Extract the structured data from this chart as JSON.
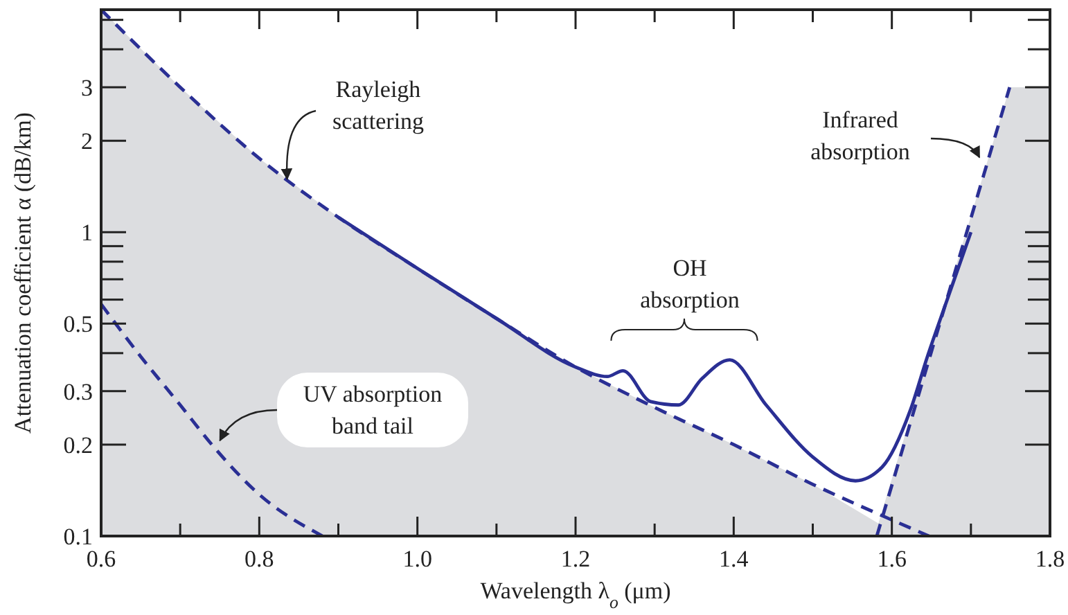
{
  "chart_data": {
    "type": "line",
    "xlabel": "Wavelength λ$_{o}$ (μm)",
    "ylabel": "Attenuation coefficient α (dB/km)",
    "log": "y",
    "xlim": [
      0.6,
      1.8
    ],
    "ylim": [
      0.1,
      5.4
    ],
    "xticks": [
      0.6,
      {
        "value": 0.7,
        "label": null
      },
      {
        "value": 0.8,
        "label": "0.8"
      },
      {
        "value": 0.9,
        "label": null
      },
      {
        "value": 1.0,
        "label": "1.0"
      },
      {
        "value": 1.1,
        "label": null
      },
      {
        "value": 1.2,
        "label": "1.2"
      },
      {
        "value": 1.3,
        "label": null
      },
      {
        "value": 1.4,
        "label": "1.4"
      },
      {
        "value": 1.5,
        "label": null
      },
      {
        "value": 1.6,
        "label": "1.6"
      },
      {
        "value": 1.7,
        "label": null
      },
      {
        "value": 1.8,
        "label": "1.8"
      }
    ],
    "yticks": [
      0.1,
      0.2,
      0.3,
      {
        "value": 0.4,
        "label": null
      },
      0.5,
      {
        "value": 0.6,
        "label": null
      },
      {
        "value": 0.7,
        "label": null
      },
      {
        "value": 0.8,
        "label": null
      },
      {
        "value": 0.9,
        "label": null
      },
      1,
      2,
      3,
      {
        "value": 4,
        "label": null
      },
      {
        "value": 5,
        "label": null
      }
    ],
    "series": [
      {
        "type": "area",
        "color": "#dcdde0",
        "x": [
          0.6,
          0.7,
          0.8,
          0.9,
          1.0,
          1.1,
          1.2,
          1.3,
          1.4,
          1.5,
          1.583,
          1.749,
          1.8
        ],
        "values": [
          5.4,
          3.0,
          1.75,
          1.12,
          0.76,
          0.52,
          0.36,
          0.265,
          0.2,
          0.148,
          0.11,
          3.0,
          3.0
        ]
      },
      {
        "color": "#2a2f94",
        "line_style": "dashed",
        "x": [
          0.6,
          0.7,
          0.8,
          0.9,
          1.0,
          1.1,
          1.2,
          1.3,
          1.4,
          1.5,
          1.6,
          1.647
        ],
        "values": [
          5.4,
          3.0,
          1.75,
          1.12,
          0.76,
          0.52,
          0.36,
          0.265,
          0.2,
          0.148,
          0.113,
          0.1
        ]
      },
      {
        "color": "#2a2f94",
        "line_style": "dashed",
        "x": [
          0.6,
          0.65,
          0.7,
          0.74,
          0.8,
          0.88
        ],
        "values": [
          0.58,
          0.39,
          0.27,
          0.2,
          0.137,
          0.1
        ]
      },
      {
        "color": "#2a2f94",
        "line_style": "dashed",
        "x": [
          1.581,
          1.749
        ],
        "values": [
          0.1,
          3.0
        ]
      },
      {
        "color": "#2a2f94",
        "line_style": "solid",
        "x": [
          0.9,
          1.0,
          1.1,
          1.2,
          1.24,
          1.26,
          1.295,
          1.33,
          1.36,
          1.395,
          1.441,
          1.5,
          1.554,
          1.588,
          1.623,
          1.645,
          1.668,
          1.7
        ],
        "values": [
          1.12,
          0.76,
          0.52,
          0.36,
          0.335,
          0.35,
          0.277,
          0.27,
          0.33,
          0.38,
          0.27,
          0.182,
          0.152,
          0.169,
          0.258,
          0.39,
          0.58,
          1.0
        ]
      }
    ],
    "annotations": [
      {
        "text": "Rayleigh scattering",
        "x": 0.83,
        "y": 1.45
      },
      {
        "text": "Infrared absorption",
        "x": 1.716,
        "y": 1.71
      },
      "OH absorption",
      {
        "text": "UV absorption band tail",
        "x": 0.745,
        "y": 0.2
      }
    ]
  }
}
